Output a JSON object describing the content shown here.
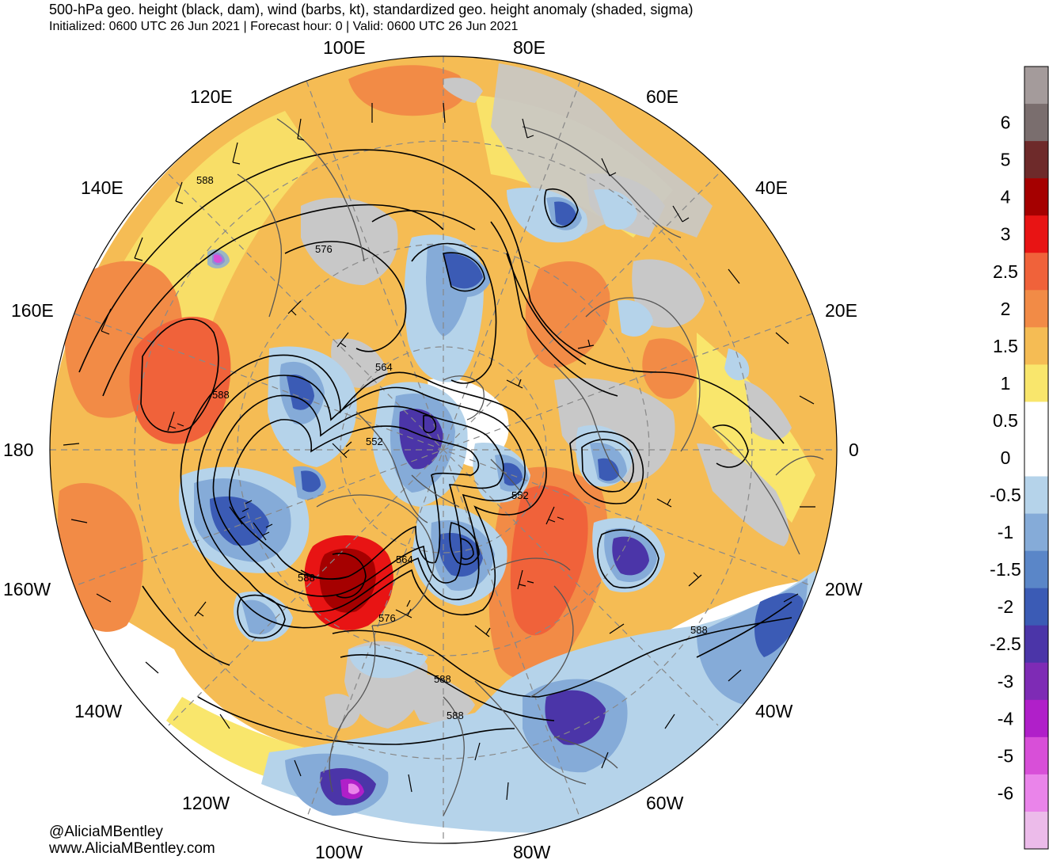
{
  "header": {
    "title": "500-hPa geo. height (black, dam), wind (barbs, kt), standardized geo. height anomaly (shaded, sigma)",
    "subtitle": "Initialized: 0600 UTC 26 Jun 2021 | Forecast hour: 0 | Valid: 0600 UTC 26 Jun 2021"
  },
  "credits": {
    "handle": "@AliciaMBentley",
    "website": "www.AliciaMBentley.com"
  },
  "map": {
    "projection": "north-polar-stereographic",
    "longitude_labels": [
      {
        "text": "100E",
        "lon": 100
      },
      {
        "text": "80E",
        "lon": 80
      },
      {
        "text": "120E",
        "lon": 120
      },
      {
        "text": "60E",
        "lon": 60
      },
      {
        "text": "140E",
        "lon": 140
      },
      {
        "text": "40E",
        "lon": 40
      },
      {
        "text": "160E",
        "lon": 160
      },
      {
        "text": "20E",
        "lon": 20
      },
      {
        "text": "180",
        "lon": 180
      },
      {
        "text": "0",
        "lon": 0
      },
      {
        "text": "160W",
        "lon": -160
      },
      {
        "text": "20W",
        "lon": -20
      },
      {
        "text": "140W",
        "lon": -140
      },
      {
        "text": "40W",
        "lon": -40
      },
      {
        "text": "120W",
        "lon": -120
      },
      {
        "text": "60W",
        "lon": -60
      },
      {
        "text": "100W",
        "lon": -100
      },
      {
        "text": "80W",
        "lon": -80
      }
    ],
    "contour_labels": [
      "576",
      "588",
      "564",
      "588",
      "552",
      "552",
      "588",
      "564",
      "576",
      "588",
      "588",
      "588"
    ],
    "colors": {
      "land": "#c8c8c8",
      "coast": "#555555",
      "contour": "#000000"
    }
  },
  "colorbar": {
    "labels": [
      "6",
      "5",
      "4",
      "3",
      "2.5",
      "2",
      "1.5",
      "1",
      "0.5",
      "0",
      "-0.5",
      "-1",
      "-1.5",
      "-2",
      "-2.5",
      "-3",
      "-4",
      "-5",
      "-6"
    ],
    "colors": [
      "#a49b9b",
      "#7a6e6e",
      "#6e2a2a",
      "#a50000",
      "#e81414",
      "#f0623a",
      "#f28b46",
      "#f5bc54",
      "#f9e66c",
      "#ffffff",
      "#ffffff",
      "#b5d3ea",
      "#85abd8",
      "#5a86c8",
      "#3b5bb5",
      "#4b35a8",
      "#7e2bb5",
      "#b01fc9",
      "#d84fd8",
      "#ea84ea",
      "#ecbbea"
    ]
  }
}
